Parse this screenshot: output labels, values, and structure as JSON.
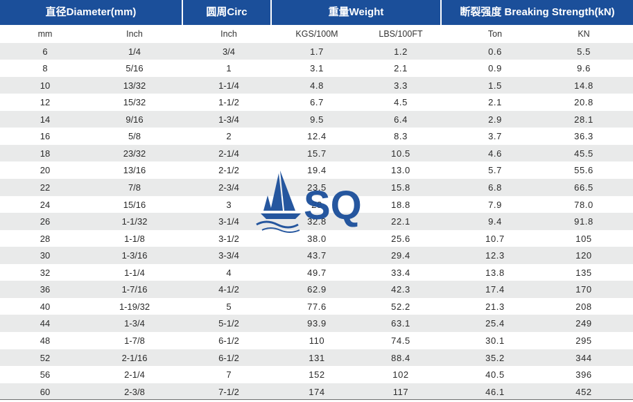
{
  "header": {
    "diameter": "直径Diameter(mm)",
    "circ": "圆周Circ",
    "weight": "重量Weight",
    "strength": "断裂强度 Breaking Strength(kN)"
  },
  "units": [
    "mm",
    "Inch",
    "Inch",
    "KGS/100M",
    "LBS/100FT",
    "Ton",
    "KN"
  ],
  "logo": {
    "text": "SQ",
    "color": "#1b4f9a"
  },
  "rows": [
    [
      "6",
      "1/4",
      "3/4",
      "1.7",
      "1.2",
      "0.6",
      "5.5"
    ],
    [
      "8",
      "5/16",
      "1",
      "3.1",
      "2.1",
      "0.9",
      "9.6"
    ],
    [
      "10",
      "13/32",
      "1-1/4",
      "4.8",
      "3.3",
      "1.5",
      "14.8"
    ],
    [
      "12",
      "15/32",
      "1-1/2",
      "6.7",
      "4.5",
      "2.1",
      "20.8"
    ],
    [
      "14",
      "9/16",
      "1-3/4",
      "9.5",
      "6.4",
      "2.9",
      "28.1"
    ],
    [
      "16",
      "5/8",
      "2",
      "12.4",
      "8.3",
      "3.7",
      "36.3"
    ],
    [
      "18",
      "23/32",
      "2-1/4",
      "15.7",
      "10.5",
      "4.6",
      "45.5"
    ],
    [
      "20",
      "13/16",
      "2-1/2",
      "19.4",
      "13.0",
      "5.7",
      "55.6"
    ],
    [
      "22",
      "7/8",
      "2-3/4",
      "23.5",
      "15.8",
      "6.8",
      "66.5"
    ],
    [
      "24",
      "15/16",
      "3",
      "28",
      "18.8",
      "7.9",
      "78.0"
    ],
    [
      "26",
      "1-1/32",
      "3-1/4",
      "32.8",
      "22.1",
      "9.4",
      "91.8"
    ],
    [
      "28",
      "1-1/8",
      "3-1/2",
      "38.0",
      "25.6",
      "10.7",
      "105"
    ],
    [
      "30",
      "1-3/16",
      "3-3/4",
      "43.7",
      "29.4",
      "12.3",
      "120"
    ],
    [
      "32",
      "1-1/4",
      "4",
      "49.7",
      "33.4",
      "13.8",
      "135"
    ],
    [
      "36",
      "1-7/16",
      "4-1/2",
      "62.9",
      "42.3",
      "17.4",
      "170"
    ],
    [
      "40",
      "1-19/32",
      "5",
      "77.6",
      "52.2",
      "21.3",
      "208"
    ],
    [
      "44",
      "1-3/4",
      "5-1/2",
      "93.9",
      "63.1",
      "25.4",
      "249"
    ],
    [
      "48",
      "1-7/8",
      "6-1/2",
      "110",
      "74.5",
      "30.1",
      "295"
    ],
    [
      "52",
      "2-1/16",
      "6-1/2",
      "131",
      "88.4",
      "35.2",
      "344"
    ],
    [
      "56",
      "2-1/4",
      "7",
      "152",
      "102",
      "40.5",
      "396"
    ],
    [
      "60",
      "2-3/8",
      "7-1/2",
      "174",
      "117",
      "46.1",
      "452"
    ]
  ]
}
